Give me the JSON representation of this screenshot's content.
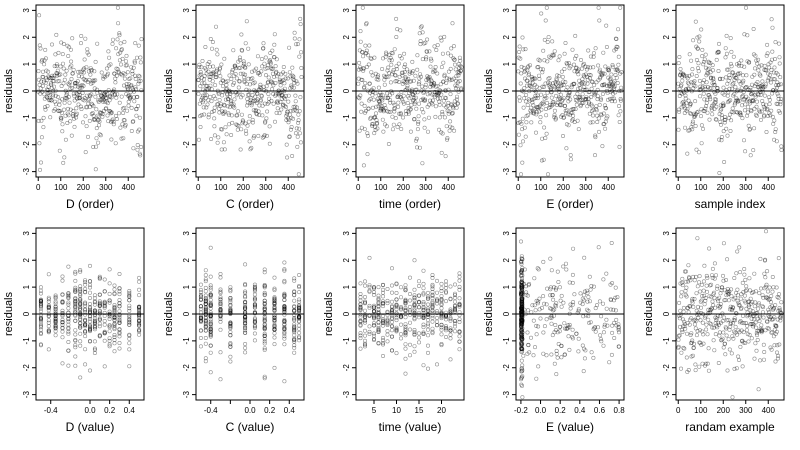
{
  "chart_data": [
    {
      "type": "scatter",
      "xlabel": "D (order)",
      "ylabel": "residuals",
      "xlim": [
        -10,
        470
      ],
      "ylim": [
        -3.2,
        3.2
      ],
      "xticks": [
        0,
        100,
        200,
        300,
        400
      ],
      "xtick_labels": [
        "0",
        "100",
        "200",
        "300",
        "400"
      ],
      "yticks": [
        -3,
        -2,
        -1,
        0,
        1,
        2,
        3
      ],
      "ytick_labels": [
        "-3",
        "-2",
        "-1",
        "0",
        "1",
        "2",
        "3"
      ],
      "hline": 0,
      "grid": false,
      "marker": "open-circle",
      "n": 460,
      "pattern": "order",
      "seed": 11,
      "spread": 1.0
    },
    {
      "type": "scatter",
      "xlabel": "C (order)",
      "ylabel": "residuals",
      "xlim": [
        -10,
        470
      ],
      "ylim": [
        -3.2,
        3.2
      ],
      "xticks": [
        0,
        100,
        200,
        300,
        400
      ],
      "xtick_labels": [
        "0",
        "100",
        "200",
        "300",
        "400"
      ],
      "yticks": [
        -3,
        -2,
        -1,
        0,
        1,
        2,
        3
      ],
      "ytick_labels": [
        "-3",
        "-2",
        "-1",
        "0",
        "1",
        "2",
        "3"
      ],
      "hline": 0,
      "grid": false,
      "marker": "open-circle",
      "n": 460,
      "pattern": "order",
      "seed": 12,
      "spread": 1.0
    },
    {
      "type": "scatter",
      "xlabel": "time (order)",
      "ylabel": "residuals",
      "xlim": [
        -10,
        470
      ],
      "ylim": [
        -3.2,
        3.2
      ],
      "xticks": [
        0,
        100,
        200,
        300,
        400
      ],
      "xtick_labels": [
        "0",
        "100",
        "200",
        "300",
        "400"
      ],
      "yticks": [
        -3,
        -2,
        -1,
        0,
        1,
        2,
        3
      ],
      "ytick_labels": [
        "-3",
        "-2",
        "-1",
        "0",
        "1",
        "2",
        "3"
      ],
      "hline": 0,
      "grid": false,
      "marker": "open-circle",
      "n": 460,
      "pattern": "order",
      "seed": 13,
      "spread": 1.0
    },
    {
      "type": "scatter",
      "xlabel": "E (order)",
      "ylabel": "residuals",
      "xlim": [
        -10,
        470
      ],
      "ylim": [
        -3.2,
        3.2
      ],
      "xticks": [
        0,
        100,
        200,
        300,
        400
      ],
      "xtick_labels": [
        "0",
        "100",
        "200",
        "300",
        "400"
      ],
      "yticks": [
        -3,
        -2,
        -1,
        0,
        1,
        2,
        3
      ],
      "ytick_labels": [
        "-3",
        "-2",
        "-1",
        "0",
        "1",
        "2",
        "3"
      ],
      "hline": 0,
      "grid": false,
      "marker": "open-circle",
      "n": 460,
      "pattern": "order",
      "seed": 14,
      "spread": 1.0
    },
    {
      "type": "scatter",
      "xlabel": "sample index",
      "ylabel": "residuals",
      "xlim": [
        -10,
        470
      ],
      "ylim": [
        -3.2,
        3.2
      ],
      "xticks": [
        0,
        100,
        200,
        300,
        400
      ],
      "xtick_labels": [
        "0",
        "100",
        "200",
        "300",
        "400"
      ],
      "yticks": [
        -3,
        -2,
        -1,
        0,
        1,
        2,
        3
      ],
      "ytick_labels": [
        "-3",
        "-2",
        "-1",
        "0",
        "1",
        "2",
        "3"
      ],
      "hline": 0,
      "grid": false,
      "marker": "open-circle",
      "n": 460,
      "pattern": "order",
      "seed": 15,
      "spread": 1.0
    },
    {
      "type": "scatter",
      "xlabel": "D (value)",
      "ylabel": "residuals",
      "xlim": [
        -0.55,
        0.55
      ],
      "ylim": [
        -3.2,
        3.2
      ],
      "xticks": [
        -0.4,
        0.0,
        0.2,
        0.4
      ],
      "xtick_labels": [
        "-0.4",
        "0.0",
        "0.2",
        "0.4"
      ],
      "yticks": [
        -3,
        -2,
        -1,
        0,
        1,
        2,
        3
      ],
      "ytick_labels": [
        "-3",
        "-2",
        "-1",
        "0",
        "1",
        "2",
        "3"
      ],
      "hline": 0,
      "grid": false,
      "marker": "open-circle",
      "n": 460,
      "pattern": "values",
      "levels": [
        -0.5,
        -0.42,
        -0.35,
        -0.28,
        -0.22,
        -0.15,
        -0.1,
        -0.05,
        0.0,
        0.05,
        0.1,
        0.15,
        0.2,
        0.25,
        0.3,
        0.4,
        0.5
      ],
      "seed": 21,
      "spread": 0.9
    },
    {
      "type": "scatter",
      "xlabel": "C (value)",
      "ylabel": "residuals",
      "xlim": [
        -0.55,
        0.55
      ],
      "ylim": [
        -3.2,
        3.2
      ],
      "xticks": [
        -0.4,
        -0.2,
        0.0,
        0.2,
        0.4
      ],
      "xtick_labels": [
        "-0.4",
        "",
        "0.0",
        "0.2",
        "0.4"
      ],
      "yticks": [
        -3,
        -2,
        -1,
        0,
        1,
        2,
        3
      ],
      "ytick_labels": [
        "-3",
        "-2",
        "-1",
        "0",
        "1",
        "2",
        "3"
      ],
      "hline": 0,
      "grid": false,
      "marker": "open-circle",
      "n": 460,
      "pattern": "values",
      "levels": [
        -0.5,
        -0.45,
        -0.4,
        -0.3,
        -0.2,
        -0.05,
        0.05,
        0.15,
        0.25,
        0.35,
        0.45,
        0.5
      ],
      "seed": 22,
      "spread": 0.9
    },
    {
      "type": "scatter",
      "xlabel": "time (value)",
      "ylabel": "residuals",
      "xlim": [
        1,
        25
      ],
      "ylim": [
        -3.2,
        3.2
      ],
      "xticks": [
        5,
        10,
        15,
        20
      ],
      "xtick_labels": [
        "5",
        "10",
        "15",
        "20"
      ],
      "yticks": [
        -3,
        -2,
        -1,
        0,
        1,
        2,
        3
      ],
      "ytick_labels": [
        "-3",
        "-2",
        "-1",
        "0",
        "1",
        "2",
        "3"
      ],
      "hline": 0,
      "grid": false,
      "marker": "open-circle",
      "n": 460,
      "pattern": "values",
      "levels": [
        2,
        3,
        4,
        5,
        6,
        7,
        8,
        9,
        10,
        11,
        12,
        13,
        14,
        15,
        16,
        17,
        18,
        19,
        20,
        21,
        22,
        23,
        24
      ],
      "seed": 23,
      "spread": 0.9
    },
    {
      "type": "scatter",
      "xlabel": "E (value)",
      "ylabel": "residuals",
      "xlim": [
        -0.25,
        0.85
      ],
      "ylim": [
        -3.2,
        3.2
      ],
      "xticks": [
        -0.2,
        0.0,
        0.2,
        0.4,
        0.6,
        0.8
      ],
      "xtick_labels": [
        "-0.2",
        "0.0",
        "0.2",
        "0.4",
        "0.6",
        "0.8"
      ],
      "yticks": [
        -3,
        -2,
        -1,
        0,
        1,
        2,
        3
      ],
      "ytick_labels": [
        "-3",
        "-2",
        "-1",
        "0",
        "1",
        "2",
        "3"
      ],
      "hline": 0,
      "grid": false,
      "marker": "open-circle",
      "n": 460,
      "pattern": "skewed",
      "seed": 24,
      "spread": 1.0
    },
    {
      "type": "scatter",
      "xlabel": "randam example",
      "ylabel": "residuals",
      "xlim": [
        -10,
        470
      ],
      "ylim": [
        -3.2,
        3.2
      ],
      "xticks": [
        0,
        100,
        200,
        300,
        400
      ],
      "xtick_labels": [
        "0",
        "100",
        "200",
        "300",
        "400"
      ],
      "yticks": [
        -3,
        -2,
        -1,
        0,
        1,
        2,
        3
      ],
      "ytick_labels": [
        "-3",
        "-2",
        "-1",
        "0",
        "1",
        "2",
        "3"
      ],
      "hline": 0,
      "grid": false,
      "marker": "open-circle",
      "n": 460,
      "pattern": "random",
      "seed": 25,
      "spread": 1.0
    }
  ],
  "colors": {
    "marker": "#000000",
    "axis": "#000000",
    "background": "#ffffff"
  }
}
